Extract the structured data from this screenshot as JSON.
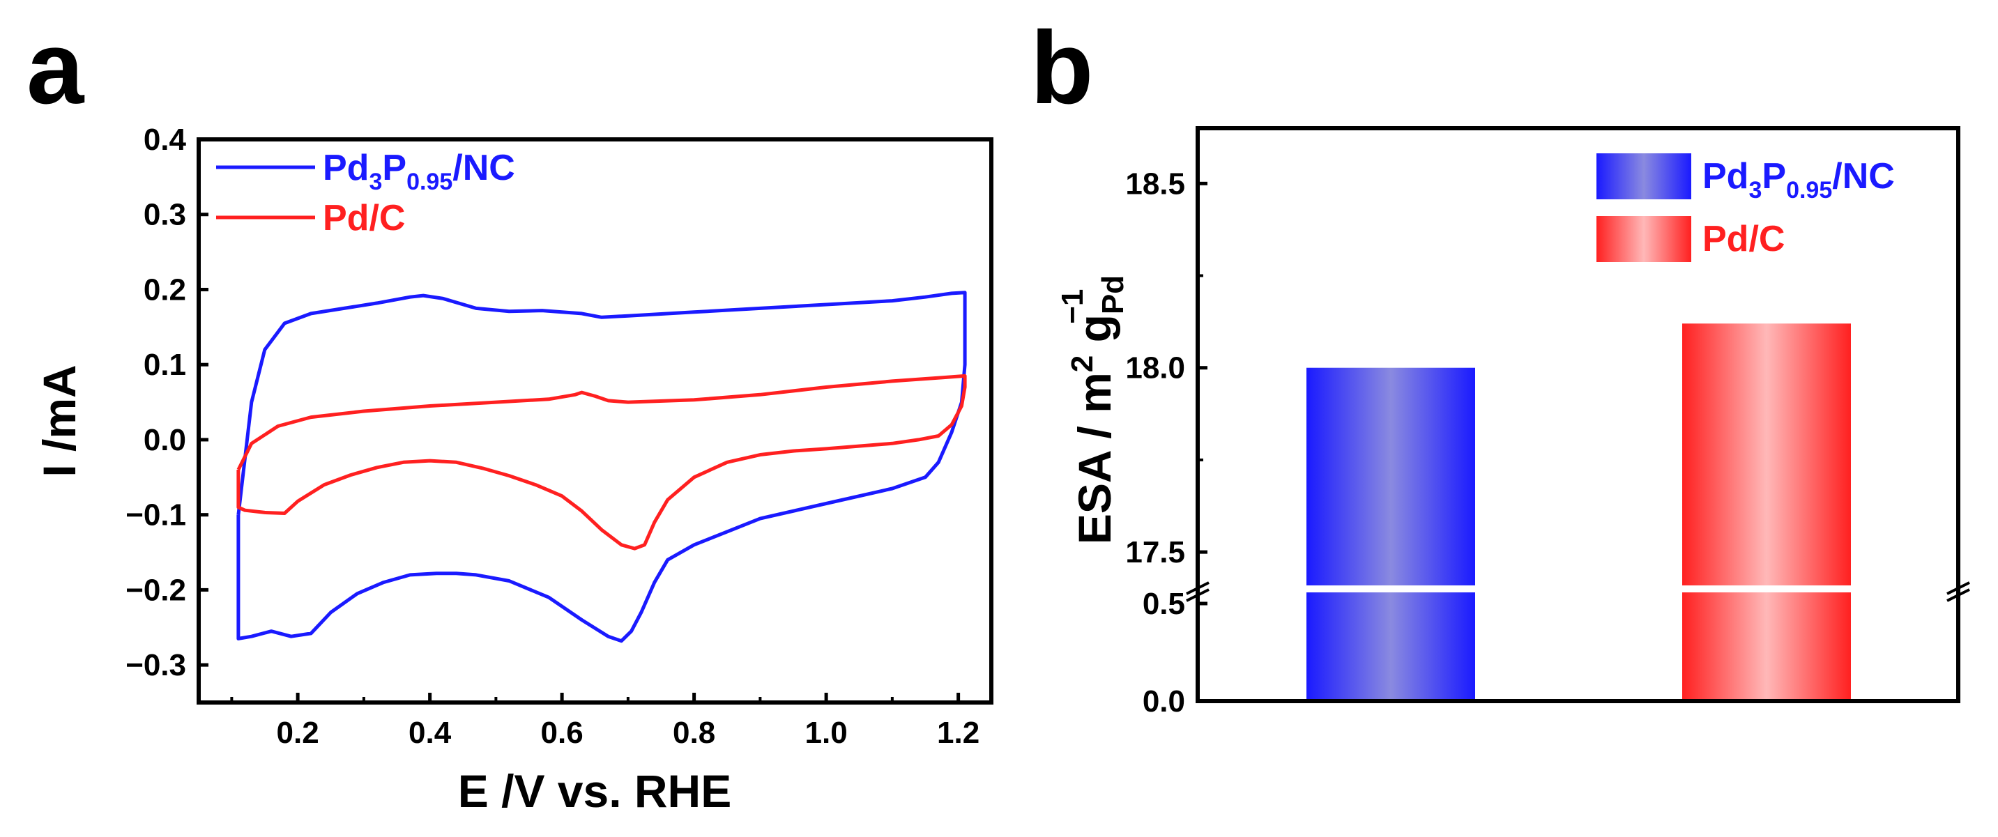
{
  "panels": {
    "a": {
      "label": "a"
    },
    "b": {
      "label": "b"
    }
  },
  "colors": {
    "blue": "#1a1aff",
    "red": "#ff2020",
    "blue_mid": "#8a8ae0",
    "red_mid": "#ffb8b8"
  },
  "chart_data": [
    {
      "id": "a",
      "type": "line",
      "title": "",
      "xlabel": "E /V vs. RHE",
      "ylabel": "I /mA",
      "xlim": [
        0.05,
        1.25
      ],
      "ylim": [
        -0.35,
        0.4
      ],
      "xticks": [
        "0.2",
        "0.4",
        "0.6",
        "0.8",
        "1.0",
        "1.2"
      ],
      "xtick_values": [
        0.2,
        0.4,
        0.6,
        0.8,
        1.0,
        1.2
      ],
      "yticks": [
        "0.4",
        "0.3",
        "0.2",
        "0.1",
        "0.0",
        "−0.1",
        "−0.2",
        "−0.3"
      ],
      "ytick_values": [
        0.4,
        0.3,
        0.2,
        0.1,
        0.0,
        -0.1,
        -0.2,
        -0.3
      ],
      "legend_position": "top-left",
      "series": [
        {
          "name": "Pd3P0.95/NC",
          "legend": {
            "main": "Pd",
            "sub1": "3",
            "mid": "P",
            "sub2": "0.95",
            "tail": "/NC"
          },
          "color": "#1a1aff",
          "x": [
            0.11,
            0.13,
            0.15,
            0.18,
            0.22,
            0.27,
            0.32,
            0.37,
            0.39,
            0.42,
            0.47,
            0.52,
            0.57,
            0.6,
            0.63,
            0.66,
            0.7,
            0.8,
            0.9,
            1.0,
            1.1,
            1.15,
            1.19,
            1.21,
            1.21,
            1.205,
            1.19,
            1.17,
            1.15,
            1.1,
            1.0,
            0.9,
            0.8,
            0.76,
            0.74,
            0.72,
            0.705,
            0.69,
            0.67,
            0.63,
            0.58,
            0.52,
            0.47,
            0.44,
            0.41,
            0.37,
            0.33,
            0.29,
            0.25,
            0.22,
            0.19,
            0.16,
            0.13,
            0.11,
            0.11
          ],
          "y": [
            -0.1,
            0.05,
            0.12,
            0.155,
            0.168,
            0.175,
            0.182,
            0.19,
            0.192,
            0.188,
            0.175,
            0.171,
            0.172,
            0.17,
            0.168,
            0.163,
            0.165,
            0.17,
            0.175,
            0.18,
            0.185,
            0.19,
            0.195,
            0.196,
            0.1,
            0.05,
            0.01,
            -0.03,
            -0.05,
            -0.065,
            -0.085,
            -0.105,
            -0.14,
            -0.16,
            -0.19,
            -0.23,
            -0.255,
            -0.268,
            -0.262,
            -0.24,
            -0.21,
            -0.188,
            -0.18,
            -0.178,
            -0.178,
            -0.18,
            -0.19,
            -0.205,
            -0.23,
            -0.258,
            -0.262,
            -0.255,
            -0.262,
            -0.265,
            -0.1
          ]
        },
        {
          "name": "Pd/C",
          "legend": {
            "main": "Pd/C"
          },
          "color": "#ff2020",
          "x": [
            0.11,
            0.13,
            0.17,
            0.22,
            0.3,
            0.4,
            0.5,
            0.58,
            0.62,
            0.63,
            0.65,
            0.67,
            0.7,
            0.8,
            0.9,
            1.0,
            1.1,
            1.18,
            1.21,
            1.21,
            1.205,
            1.19,
            1.17,
            1.14,
            1.1,
            1.0,
            0.95,
            0.9,
            0.85,
            0.8,
            0.76,
            0.74,
            0.725,
            0.71,
            0.69,
            0.66,
            0.63,
            0.6,
            0.56,
            0.52,
            0.48,
            0.44,
            0.4,
            0.36,
            0.32,
            0.28,
            0.24,
            0.2,
            0.18,
            0.15,
            0.12,
            0.11,
            0.11
          ],
          "y": [
            -0.04,
            -0.005,
            0.018,
            0.03,
            0.038,
            0.045,
            0.05,
            0.054,
            0.06,
            0.063,
            0.058,
            0.052,
            0.05,
            0.053,
            0.06,
            0.07,
            0.078,
            0.083,
            0.085,
            0.07,
            0.045,
            0.02,
            0.005,
            0.0,
            -0.005,
            -0.012,
            -0.015,
            -0.02,
            -0.03,
            -0.05,
            -0.08,
            -0.11,
            -0.14,
            -0.145,
            -0.14,
            -0.12,
            -0.095,
            -0.075,
            -0.06,
            -0.048,
            -0.038,
            -0.03,
            -0.028,
            -0.03,
            -0.037,
            -0.047,
            -0.06,
            -0.082,
            -0.098,
            -0.097,
            -0.094,
            -0.09,
            -0.04
          ]
        }
      ]
    },
    {
      "id": "b",
      "type": "bar",
      "title": "",
      "xlabel": "",
      "ylabel": {
        "main": "ESA / m",
        "sup1": "2",
        "mid": " g",
        "sub": "Pd",
        "sup2": "−1"
      },
      "broken_axis": true,
      "lower_segment": {
        "ylim": [
          0.0,
          0.5
        ],
        "yticks": [
          "0.0",
          "0.5"
        ],
        "ytick_values": [
          0.0,
          0.5
        ]
      },
      "upper_segment": {
        "ylim": [
          17.4,
          18.65
        ],
        "yticks": [
          "17.5",
          "18.0",
          "18.5"
        ],
        "ytick_values": [
          17.5,
          18.0,
          18.5
        ]
      },
      "legend_position": "top-right",
      "categories": [
        "Pd3P0.95/NC",
        "Pd/C"
      ],
      "values": [
        18.0,
        18.12
      ],
      "series": [
        {
          "name": "Pd3P0.95/NC",
          "legend": {
            "main": "Pd",
            "sub1": "3",
            "mid": "P",
            "sub2": "0.95",
            "tail": "/NC"
          },
          "value": 18.0,
          "color": "#1a1aff"
        },
        {
          "name": "Pd/C",
          "legend": {
            "main": "Pd/C"
          },
          "value": 18.12,
          "color": "#ff2020"
        }
      ]
    }
  ]
}
